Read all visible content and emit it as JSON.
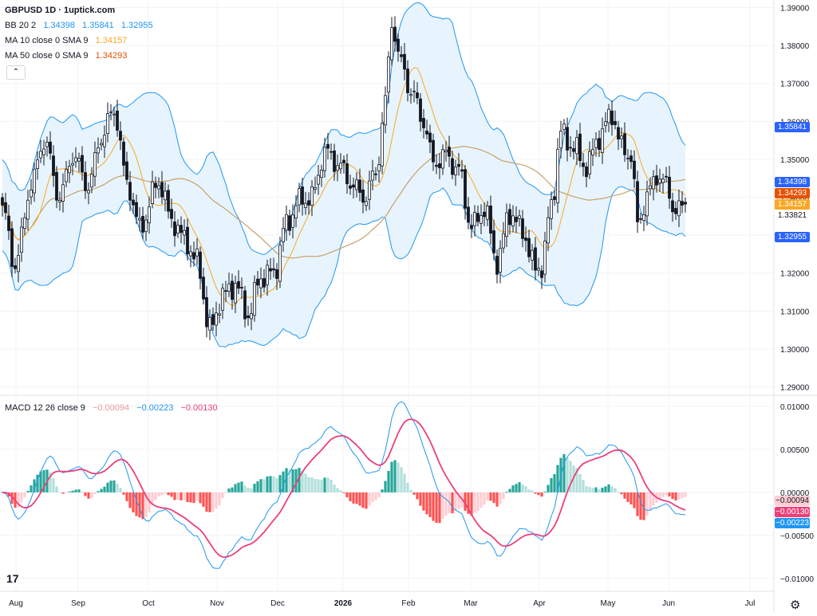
{
  "header": {
    "symbol_title": "GBPUSD 1D · 1uptick.com",
    "bb_label": "BB 20 2",
    "bb_values": [
      "1.34398",
      "1.35841",
      "1.32955"
    ],
    "ma10_label": "MA 10 close 0 SMA 9",
    "ma10_value": "1.34157",
    "ma50_label": "MA 50 close 0 SMA 9",
    "ma50_value": "1.34293",
    "collapse_icon": "chevron-up-icon"
  },
  "macd_legend": {
    "label": "MACD 12 26 close 9",
    "values": [
      "−0.00094",
      "−0.00223",
      "−0.00130"
    ]
  },
  "price_tags": [
    {
      "text": "1.35841",
      "color": "#2962ff",
      "price": 1.35841
    },
    {
      "text": "1.34398",
      "color": "#2962ff",
      "price": 1.34398
    },
    {
      "text": "1.34293",
      "color": "#e65100",
      "price": 1.34293
    },
    {
      "text": "1.34157",
      "color": "#f9a825",
      "price": 1.34157
    },
    {
      "text": "1.33821",
      "color": "#ffffff",
      "price": 1.33821
    },
    {
      "text": "1.32955",
      "color": "#2962ff",
      "price": 1.32955
    }
  ],
  "macd_tags": [
    {
      "text": "−0.00094",
      "color": "#ffcdd2",
      "value": -0.00094
    },
    {
      "text": "−0.00130",
      "color": "#ec407a",
      "value": -0.0013
    },
    {
      "text": "−0.00223",
      "color": "#2196f3",
      "value": -0.00223
    }
  ],
  "colors": {
    "up": "#ffffff",
    "down": "#131722",
    "band_fill": "#e3f2fd",
    "band_line": "#2196f3",
    "ma10": "#f9a825",
    "ma50": "#c8a06a",
    "macd_line": "#2196f3",
    "signal_line": "#ec407a",
    "hist_pos_strong": "#26a69a",
    "hist_pos_weak": "#b2dfdb",
    "hist_neg_strong": "#ff5252",
    "hist_neg_weak": "#ffcdd2"
  },
  "footer": {
    "logo_text": "17",
    "settings_icon": "gear-icon"
  },
  "chart_data": [
    {
      "type": "candlestick",
      "price_axis": {
        "ticks": [
          "1.39000",
          "1.38000",
          "1.37000",
          "1.36000",
          "1.35000",
          "1.34000",
          "1.33000",
          "1.32000",
          "1.31000",
          "1.30000",
          "1.29000"
        ],
        "ylim": [
          1.288,
          1.392
        ]
      },
      "time_axis": {
        "ticks": [
          "Aug",
          "Sep",
          "Oct",
          "Nov",
          "Dec",
          "2026",
          "Feb",
          "Mar",
          "Apr",
          "May",
          "Jun",
          "Jul"
        ],
        "bold_ticks": [
          "2026"
        ]
      },
      "close_anchors": [
        {
          "t": 0,
          "c": 1.337
        },
        {
          "t": 4,
          "c": 1.322
        },
        {
          "t": 9,
          "c": 1.343
        },
        {
          "t": 13,
          "c": 1.355
        },
        {
          "t": 18,
          "c": 1.34
        },
        {
          "t": 22,
          "c": 1.351
        },
        {
          "t": 27,
          "c": 1.343
        },
        {
          "t": 31,
          "c": 1.356
        },
        {
          "t": 35,
          "c": 1.363
        },
        {
          "t": 39,
          "c": 1.344
        },
        {
          "t": 43,
          "c": 1.332
        },
        {
          "t": 49,
          "c": 1.344
        },
        {
          "t": 53,
          "c": 1.334
        },
        {
          "t": 57,
          "c": 1.329
        },
        {
          "t": 61,
          "c": 1.323
        },
        {
          "t": 65,
          "c": 1.305
        },
        {
          "t": 69,
          "c": 1.314
        },
        {
          "t": 73,
          "c": 1.317
        },
        {
          "t": 77,
          "c": 1.309
        },
        {
          "t": 81,
          "c": 1.319
        },
        {
          "t": 85,
          "c": 1.32
        },
        {
          "t": 89,
          "c": 1.333
        },
        {
          "t": 93,
          "c": 1.339
        },
        {
          "t": 97,
          "c": 1.34
        },
        {
          "t": 101,
          "c": 1.352
        },
        {
          "t": 105,
          "c": 1.349
        },
        {
          "t": 109,
          "c": 1.344
        },
        {
          "t": 113,
          "c": 1.34
        },
        {
          "t": 117,
          "c": 1.346
        },
        {
          "t": 120,
          "c": 1.365
        },
        {
          "t": 122,
          "c": 1.386
        },
        {
          "t": 125,
          "c": 1.375
        },
        {
          "t": 128,
          "c": 1.368
        },
        {
          "t": 132,
          "c": 1.36
        },
        {
          "t": 135,
          "c": 1.349
        },
        {
          "t": 139,
          "c": 1.351
        },
        {
          "t": 143,
          "c": 1.347
        },
        {
          "t": 147,
          "c": 1.332
        },
        {
          "t": 151,
          "c": 1.337
        },
        {
          "t": 155,
          "c": 1.323
        },
        {
          "t": 159,
          "c": 1.336
        },
        {
          "t": 163,
          "c": 1.331
        },
        {
          "t": 167,
          "c": 1.321
        },
        {
          "t": 169,
          "c": 1.322
        },
        {
          "t": 172,
          "c": 1.338
        },
        {
          "t": 175,
          "c": 1.357
        },
        {
          "t": 179,
          "c": 1.353
        },
        {
          "t": 183,
          "c": 1.348
        },
        {
          "t": 187,
          "c": 1.356
        },
        {
          "t": 191,
          "c": 1.362
        },
        {
          "t": 194,
          "c": 1.353
        },
        {
          "t": 197,
          "c": 1.351
        },
        {
          "t": 199,
          "c": 1.333
        },
        {
          "t": 202,
          "c": 1.34
        },
        {
          "t": 205,
          "c": 1.346
        },
        {
          "t": 208,
          "c": 1.343
        },
        {
          "t": 211,
          "c": 1.336
        },
        {
          "t": 214,
          "c": 1.338
        }
      ],
      "last_close": 1.33821,
      "bollinger": {
        "period": 20,
        "mult": 2,
        "upper": 1.35841,
        "middle": 1.34398,
        "lower": 1.32955
      },
      "ma10": 1.34157,
      "ma50": 1.34293
    },
    {
      "type": "line",
      "name": "MACD 12 26 close 9",
      "value_axis": {
        "ticks": [
          "0.01000",
          "0.00500",
          "0.00000",
          "−0.00500",
          "−0.01000"
        ],
        "ylim": [
          -0.0115,
          0.0112
        ]
      },
      "latest": {
        "histogram": -0.00094,
        "macd": -0.00223,
        "signal": -0.0013
      }
    }
  ]
}
